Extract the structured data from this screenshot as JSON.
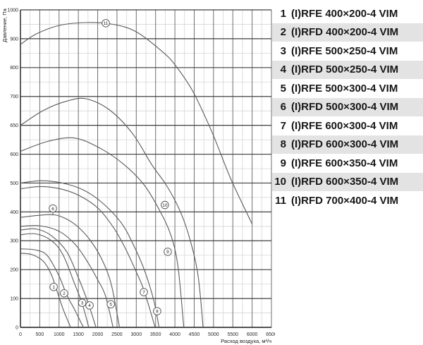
{
  "colors": {
    "curve": "#5a5a5a",
    "grid_major_h": "#3f3f3f",
    "grid_major_v": "#6e6e6e",
    "grid_minor": "#d6d6d6",
    "axis": "#1a1a1a",
    "tick_text": "#2a2a2a",
    "legend_shade": "#e3e3e3",
    "circle_stroke": "#4d4d4d",
    "circle_fill": "#ffffff"
  },
  "legend": {
    "items": [
      {
        "num": "1",
        "label": "(I)RFE 400×200-4 VIM"
      },
      {
        "num": "2",
        "label": "(I)RFD 400×200-4 VIM"
      },
      {
        "num": "3",
        "label": "(I)RFE 500×250-4 VIM"
      },
      {
        "num": "4",
        "label": "(I)RFD 500×250-4 VIM"
      },
      {
        "num": "5",
        "label": "(I)RFE 500×300-4 VIM"
      },
      {
        "num": "6",
        "label": "(I)RFD 500×300-4 VIM"
      },
      {
        "num": "7",
        "label": "(I)RFE 600×300-4 VIM"
      },
      {
        "num": "8",
        "label": "(I)RFD 600×300-4 VIM"
      },
      {
        "num": "9",
        "label": "(I)RFE 600×350-4 VIM"
      },
      {
        "num": "10",
        "label": "(I)RFD 600×350-4 VIM"
      },
      {
        "num": "11",
        "label": "(I)RFD 700×400-4 VIM"
      }
    ]
  },
  "chart_data": {
    "type": "line",
    "title": "",
    "xlabel": "Расход воздуха, м³/ч",
    "ylabel": "Давление, Па",
    "x_ticks": [
      0,
      500,
      1000,
      1500,
      2000,
      2500,
      3000,
      3500,
      4000,
      4500,
      5000,
      5500,
      6000,
      6500
    ],
    "x_minor_step": 250,
    "xlim": [
      0,
      6500
    ],
    "y_ticks": [
      0,
      100,
      200,
      300,
      400,
      500,
      600,
      650,
      700,
      800,
      900,
      1000
    ],
    "y_axis_note": "gridlines equally spaced per tick label; scale non-linear between 600 and 700 (extra 650 line)",
    "grid": true,
    "legend_position": "right",
    "series": [
      {
        "id": 1,
        "name": "(I)RFE 400×200-4 VIM",
        "points": [
          [
            0,
            257
          ],
          [
            300,
            252
          ],
          [
            600,
            228
          ],
          [
            800,
            183
          ],
          [
            950,
            125
          ],
          [
            1100,
            65
          ],
          [
            1300,
            0
          ]
        ]
      },
      {
        "id": 2,
        "name": "(I)RFD 400×200-4 VIM",
        "points": [
          [
            0,
            272
          ],
          [
            400,
            268
          ],
          [
            700,
            248
          ],
          [
            1000,
            178
          ],
          [
            1200,
            112
          ],
          [
            1400,
            62
          ],
          [
            1630,
            0
          ]
        ]
      },
      {
        "id": 3,
        "name": "(I)RFE 500×250-4 VIM",
        "points": [
          [
            0,
            321
          ],
          [
            400,
            324
          ],
          [
            800,
            301
          ],
          [
            1100,
            252
          ],
          [
            1400,
            152
          ],
          [
            1600,
            82
          ],
          [
            1770,
            0
          ]
        ]
      },
      {
        "id": 4,
        "name": "(I)RFD 500×250-4 VIM",
        "points": [
          [
            0,
            337
          ],
          [
            400,
            341
          ],
          [
            800,
            318
          ],
          [
            1200,
            262
          ],
          [
            1500,
            172
          ],
          [
            1750,
            86
          ],
          [
            1955,
            0
          ]
        ]
      },
      {
        "id": 5,
        "name": "(I)RFE 500×300-4 VIM",
        "points": [
          [
            0,
            350
          ],
          [
            500,
            352
          ],
          [
            1000,
            333
          ],
          [
            1400,
            290
          ],
          [
            1700,
            235
          ],
          [
            2000,
            165
          ],
          [
            2200,
            110
          ],
          [
            2400,
            0
          ]
        ]
      },
      {
        "id": 6,
        "name": "(I)RFD 500×300-4 VIM",
        "points": [
          [
            0,
            381
          ],
          [
            450,
            388
          ],
          [
            880,
            390
          ],
          [
            1200,
            375
          ],
          [
            1500,
            347
          ],
          [
            1800,
            303
          ],
          [
            2100,
            238
          ],
          [
            2350,
            150
          ],
          [
            2565,
            0
          ]
        ]
      },
      {
        "id": 7,
        "name": "(I)RFE 600×300-4 VIM",
        "points": [
          [
            0,
            480
          ],
          [
            500,
            488
          ],
          [
            1000,
            481
          ],
          [
            1500,
            458
          ],
          [
            2000,
            414
          ],
          [
            2400,
            348
          ],
          [
            2700,
            278
          ],
          [
            3000,
            192
          ],
          [
            3200,
            128
          ],
          [
            3490,
            0
          ]
        ]
      },
      {
        "id": 8,
        "name": "(I)RFD 600×300-4 VIM",
        "points": [
          [
            0,
            500
          ],
          [
            520,
            508
          ],
          [
            1050,
            501
          ],
          [
            1600,
            478
          ],
          [
            2100,
            434
          ],
          [
            2600,
            364
          ],
          [
            2900,
            293
          ],
          [
            3200,
            202
          ],
          [
            3450,
            95
          ],
          [
            3590,
            0
          ]
        ]
      },
      {
        "id": 9,
        "name": "(I)RFE 600×350-4 VIM",
        "points": [
          [
            0,
            605
          ],
          [
            700,
            622
          ],
          [
            1400,
            628
          ],
          [
            2100,
            609
          ],
          [
            2700,
            562
          ],
          [
            3200,
            494
          ],
          [
            3600,
            406
          ],
          [
            3900,
            318
          ],
          [
            4080,
            210
          ],
          [
            4230,
            0
          ]
        ]
      },
      {
        "id": 10,
        "name": "(I)RFD 600×350-4 VIM",
        "points": [
          [
            0,
            650
          ],
          [
            600,
            676
          ],
          [
            1200,
            692
          ],
          [
            1700,
            696
          ],
          [
            2300,
            677
          ],
          [
            2900,
            636
          ],
          [
            3400,
            564
          ],
          [
            3800,
            488
          ],
          [
            4150,
            398
          ],
          [
            4400,
            300
          ],
          [
            4600,
            180
          ],
          [
            4730,
            0
          ]
        ]
      },
      {
        "id": 11,
        "name": "(I)RFD 700×400-4 VIM",
        "points": [
          [
            0,
            880
          ],
          [
            400,
            916
          ],
          [
            1000,
            946
          ],
          [
            1700,
            956
          ],
          [
            2400,
            950
          ],
          [
            3000,
            924
          ],
          [
            3670,
            856
          ],
          [
            4000,
            810
          ],
          [
            4455,
            720
          ],
          [
            4950,
            640
          ],
          [
            5440,
            517
          ],
          [
            6000,
            358
          ]
        ]
      }
    ],
    "curve_labels": [
      {
        "n": "1",
        "q": 860,
        "p": 140
      },
      {
        "n": "2",
        "q": 1130,
        "p": 118
      },
      {
        "n": "3",
        "q": 1600,
        "p": 85
      },
      {
        "n": "4",
        "q": 1790,
        "p": 76
      },
      {
        "n": "5",
        "q": 2340,
        "p": 80
      },
      {
        "n": "6",
        "q": 840,
        "p": 412,
        "leader_p": 388
      },
      {
        "n": "7",
        "q": 3195,
        "p": 122
      },
      {
        "n": "8",
        "q": 3540,
        "p": 56
      },
      {
        "n": "9",
        "q": 3815,
        "p": 262
      },
      {
        "n": "10",
        "q": 3740,
        "p": 424
      },
      {
        "n": "11",
        "q": 2210,
        "p": 954
      }
    ]
  }
}
